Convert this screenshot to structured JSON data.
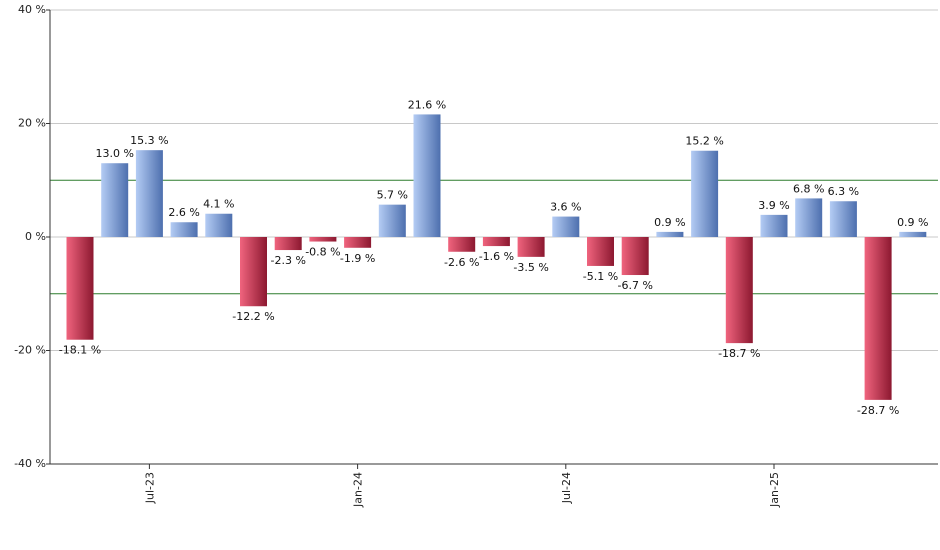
{
  "chart_data": {
    "type": "bar",
    "title": "",
    "xlabel": "",
    "ylabel": "",
    "ylim": [
      -40,
      40
    ],
    "yticks": [
      {
        "value": 40,
        "label": "40 %"
      },
      {
        "value": 20,
        "label": "20 %"
      },
      {
        "value": 0,
        "label": "0 %"
      },
      {
        "value": -20,
        "label": "-20 %"
      },
      {
        "value": -40,
        "label": "-40 %"
      }
    ],
    "reference_lines": [
      10,
      -10
    ],
    "xtick_labels": [
      {
        "index": 2,
        "label": "Jul-23"
      },
      {
        "index": 8,
        "label": "Jan-24"
      },
      {
        "index": 14,
        "label": "Jul-24"
      },
      {
        "index": 20,
        "label": "Jan-25"
      }
    ],
    "values": [
      -18.1,
      13.0,
      15.3,
      2.6,
      4.1,
      -12.2,
      -2.3,
      -0.8,
      -1.9,
      5.7,
      21.6,
      -2.6,
      -1.6,
      -3.5,
      3.6,
      -5.1,
      -6.7,
      0.9,
      15.2,
      -18.7,
      3.9,
      6.8,
      6.3,
      -28.7,
      0.9
    ],
    "labels": [
      "-18.1 %",
      "13.0 %",
      "15.3 %",
      "2.6 %",
      "4.1 %",
      "-12.2 %",
      "-2.3 %",
      "-0.8 %",
      "-1.9 %",
      "5.7 %",
      "21.6 %",
      "-2.6 %",
      "-1.6 %",
      "-3.5 %",
      "3.6 %",
      "-5.1 %",
      "-6.7 %",
      "0.9 %",
      "15.2 %",
      "-18.7 %",
      "3.9 %",
      "6.8 %",
      "6.3 %",
      "-28.7 %",
      "0.9 %"
    ],
    "colors": {
      "positive_light": "#b4ccf4",
      "positive_dark": "#4d6fae",
      "negative_light": "#f0647e",
      "negative_dark": "#8c1830",
      "reference_line": "#2e7d2e",
      "grid": "#c8c8c8",
      "axis": "#333333"
    },
    "grid": true
  }
}
